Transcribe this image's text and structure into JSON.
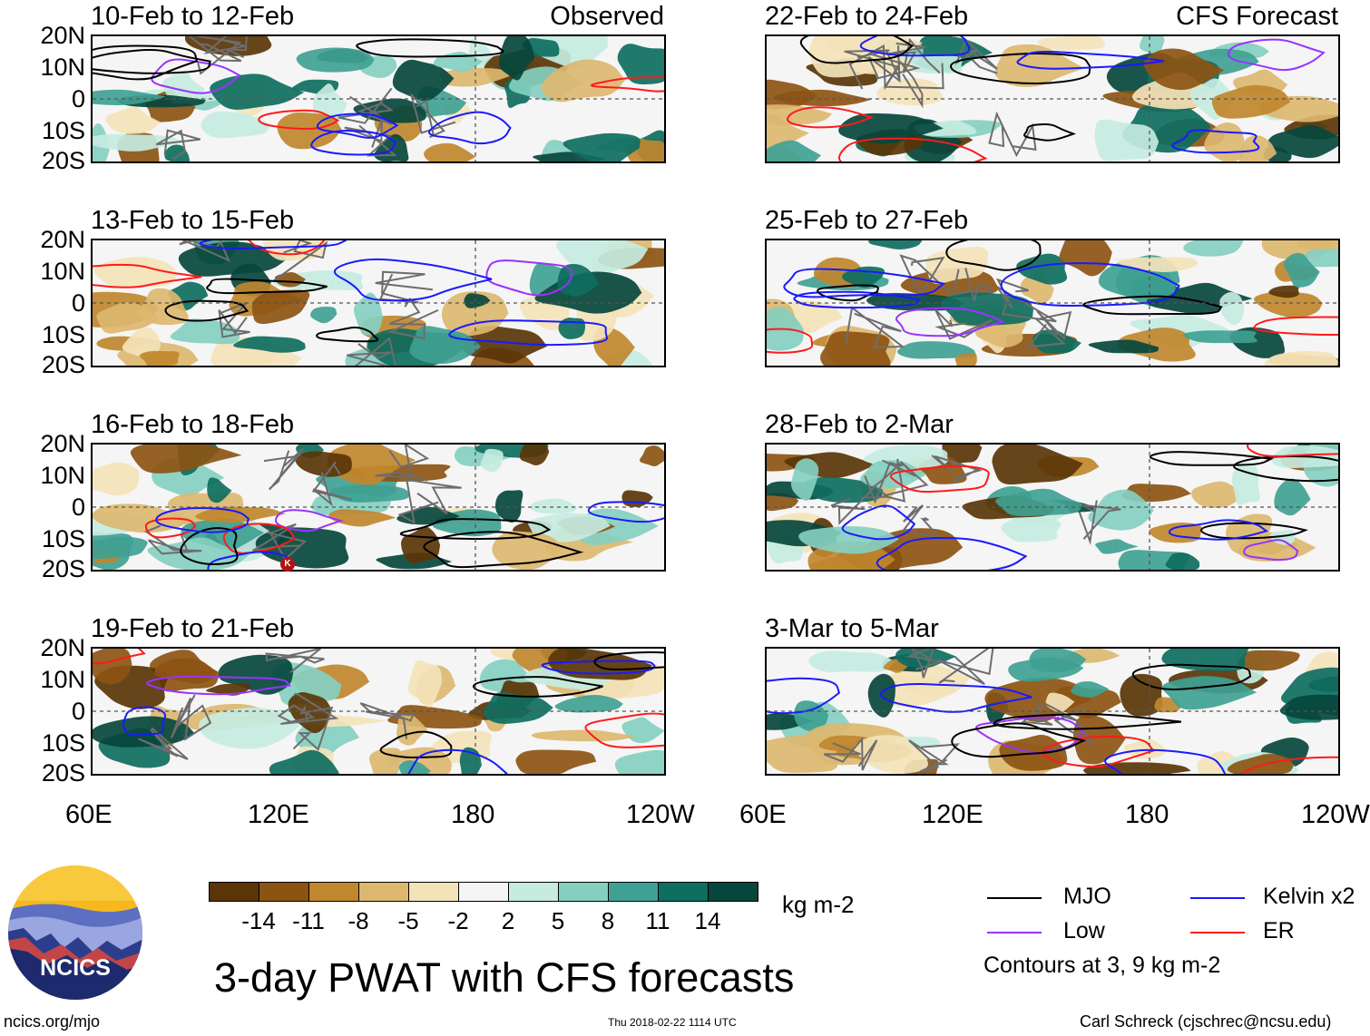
{
  "panels_left": [
    {
      "title": "10-Feb to 12-Feb",
      "tag": "Observed"
    },
    {
      "title": "13-Feb to 15-Feb",
      "tag": ""
    },
    {
      "title": "16-Feb to 18-Feb",
      "tag": ""
    },
    {
      "title": "19-Feb to 21-Feb",
      "tag": ""
    }
  ],
  "panels_right": [
    {
      "title": "22-Feb to 24-Feb",
      "tag": "CFS Forecast"
    },
    {
      "title": "25-Feb to 27-Feb",
      "tag": ""
    },
    {
      "title": "28-Feb to 2-Mar",
      "tag": ""
    },
    {
      "title": "3-Mar to 5-Mar",
      "tag": ""
    }
  ],
  "lat_labels": [
    "20N",
    "10N",
    "0",
    "10S",
    "20S"
  ],
  "lon_labels": [
    "60E",
    "120E",
    "180",
    "120W"
  ],
  "colorbar": {
    "colors": [
      "#5a3507",
      "#8c5412",
      "#c0872e",
      "#dcb76f",
      "#f3e3b8",
      "#f5f5f5",
      "#c6ebe1",
      "#84cfc0",
      "#3fa193",
      "#0e6e60",
      "#06463d"
    ],
    "labels": [
      "-14",
      "-11",
      "-8",
      "-5",
      "-2",
      "2",
      "5",
      "8",
      "11",
      "14"
    ],
    "unit": "kg m-2"
  },
  "legend": {
    "items": [
      {
        "label": "MJO",
        "color": "#000000"
      },
      {
        "label": "Kelvin x2",
        "color": "#1a1aff"
      },
      {
        "label": "Low",
        "color": "#9933ff"
      },
      {
        "label": "ER",
        "color": "#ff1a1a"
      }
    ],
    "note": "Contours at 3, 9 kg m-2"
  },
  "logo_text": "NCICS",
  "main_title": "3-day PWAT with CFS forecasts",
  "footer": {
    "left": "ncics.org/mjo",
    "center": "Thu 2018-02-22 1114 UTC",
    "right": "Carl Schreck (cjschrec@ncsu.edu)"
  },
  "marker_label": "K"
}
